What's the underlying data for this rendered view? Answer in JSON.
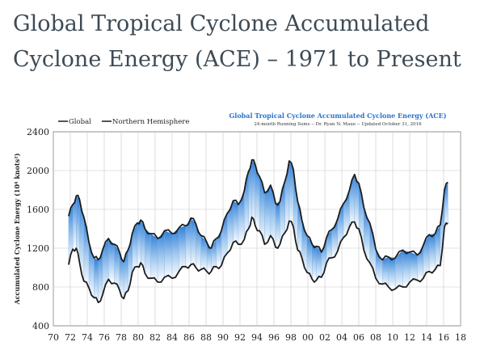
{
  "page": {
    "title_line1": "Global Tropical Cyclone Accumulated",
    "title_line2": "Cyclone Energy (ACE) – 1971 to Present"
  },
  "chart_data": {
    "type": "area",
    "title": "Global Tropical Cyclone Accumulated Cyclone Energy (ACE)",
    "subtitle": "24-month Running Sums -- Dr. Ryan N. Maue -- Updated October 31, 2016",
    "ylabel": "Accumulated Cyclone Energy (10⁴ knots²)",
    "xlabel": "",
    "xlim": [
      70,
      118
    ],
    "ylim": [
      400,
      2400
    ],
    "x_ticks": [
      "70",
      "72",
      "74",
      "76",
      "78",
      "80",
      "82",
      "84",
      "86",
      "88",
      "90",
      "92",
      "94",
      "96",
      "98",
      "00",
      "02",
      "04",
      "06",
      "08",
      "10",
      "12",
      "14",
      "16",
      "18"
    ],
    "y_ticks": [
      "400",
      "800",
      "1200",
      "1600",
      "2000",
      "2400"
    ],
    "grid": true,
    "legend": "top-left",
    "colors": {
      "global": "#1c1c1c",
      "nh": "#1c1c1c",
      "fill_top": "#4a8fdc",
      "fill_bottom": "#ffffff",
      "title": "#2a74c9"
    },
    "series": [
      {
        "name": "Global",
        "x": [
          71.8,
          72.3,
          72.7,
          73.1,
          73.6,
          74.2,
          74.8,
          75.3,
          75.8,
          76.5,
          77.2,
          77.8,
          78.3,
          78.8,
          79.3,
          79.9,
          80.3,
          80.8,
          81.5,
          82.3,
          83.1,
          84.0,
          84.8,
          85.6,
          86.2,
          86.8,
          87.4,
          88.1,
          88.6,
          89.2,
          89.8,
          90.5,
          91.2,
          91.8,
          92.5,
          93.0,
          93.4,
          93.8,
          94.3,
          94.9,
          95.6,
          96.2,
          96.7,
          97.3,
          97.8,
          98.3,
          98.8,
          99.3,
          99.9,
          100.5,
          101.0,
          101.6,
          102.2,
          102.8,
          103.5,
          104.2,
          104.9,
          105.5,
          106.0,
          106.6,
          107.3,
          108.0,
          108.8,
          109.5,
          110.3,
          111.2,
          112.0,
          112.9,
          113.6,
          114.3,
          115.0,
          115.6,
          116.1,
          116.5
        ],
        "y": [
          1530,
          1650,
          1740,
          1700,
          1520,
          1260,
          1100,
          1080,
          1180,
          1300,
          1240,
          1160,
          1060,
          1180,
          1350,
          1460,
          1490,
          1400,
          1350,
          1300,
          1380,
          1350,
          1410,
          1430,
          1510,
          1450,
          1330,
          1260,
          1200,
          1300,
          1380,
          1560,
          1690,
          1650,
          1790,
          1990,
          2110,
          2060,
          1940,
          1770,
          1850,
          1660,
          1680,
          1890,
          2100,
          2010,
          1680,
          1490,
          1330,
          1240,
          1220,
          1160,
          1310,
          1390,
          1500,
          1660,
          1800,
          1960,
          1870,
          1620,
          1460,
          1190,
          1080,
          1110,
          1100,
          1180,
          1160,
          1130,
          1230,
          1340,
          1350,
          1440,
          1800,
          1880
        ]
      },
      {
        "name": "Northern Hemisphere",
        "x": [
          71.8,
          72.3,
          72.7,
          73.1,
          73.6,
          74.2,
          74.8,
          75.3,
          75.8,
          76.5,
          77.2,
          77.8,
          78.3,
          78.8,
          79.3,
          79.9,
          80.3,
          80.8,
          81.5,
          82.3,
          83.1,
          84.0,
          84.8,
          85.6,
          86.2,
          86.8,
          87.4,
          88.1,
          88.6,
          89.2,
          89.8,
          90.5,
          91.2,
          91.8,
          92.5,
          93.0,
          93.4,
          93.8,
          94.3,
          94.9,
          95.6,
          96.2,
          96.7,
          97.3,
          97.8,
          98.3,
          98.8,
          99.3,
          99.9,
          100.5,
          101.0,
          101.6,
          102.2,
          102.8,
          103.5,
          104.2,
          104.9,
          105.5,
          106.0,
          106.6,
          107.3,
          108.0,
          108.8,
          109.5,
          110.3,
          111.2,
          112.0,
          112.9,
          113.6,
          114.3,
          115.0,
          115.6,
          116.1,
          116.5
        ],
        "y": [
          1030,
          1190,
          1200,
          1050,
          860,
          790,
          690,
          640,
          720,
          880,
          840,
          770,
          680,
          760,
          950,
          1010,
          1050,
          940,
          890,
          850,
          900,
          890,
          960,
          1010,
          1030,
          1000,
          980,
          960,
          960,
          1010,
          1020,
          1150,
          1260,
          1240,
          1290,
          1400,
          1520,
          1430,
          1380,
          1240,
          1330,
          1210,
          1240,
          1360,
          1480,
          1420,
          1180,
          1100,
          950,
          880,
          870,
          900,
          1050,
          1100,
          1170,
          1310,
          1420,
          1470,
          1400,
          1180,
          1050,
          890,
          830,
          800,
          780,
          800,
          850,
          870,
          890,
          960,
          980,
          1020,
          1420,
          1450
        ]
      }
    ]
  }
}
